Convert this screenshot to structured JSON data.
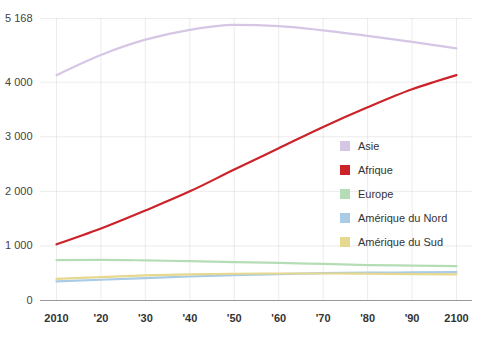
{
  "chart_data": {
    "type": "line",
    "x": [
      2010,
      2020,
      2030,
      2040,
      2050,
      2060,
      2070,
      2080,
      2090,
      2100
    ],
    "xlim": [
      2010,
      2100
    ],
    "xticks": [
      2010,
      {
        "value": 2020,
        "label": "'20"
      },
      {
        "value": 2030,
        "label": "'30"
      },
      {
        "value": 2040,
        "label": "'40"
      },
      {
        "value": 2050,
        "label": "'50"
      },
      {
        "value": 2060,
        "label": "'60"
      },
      {
        "value": 2070,
        "label": "'70"
      },
      {
        "value": 2080,
        "label": "'80"
      },
      {
        "value": 2090,
        "label": "'90"
      },
      2100
    ],
    "ylim": [
      0,
      5168
    ],
    "yticks": [
      0,
      {
        "value": 1000,
        "label": "1 000"
      },
      {
        "value": 2000,
        "label": "2 000"
      },
      {
        "value": 3000,
        "label": "3 000"
      },
      {
        "value": 4000,
        "label": "4 000"
      },
      {
        "value": 5168,
        "label": "5 168"
      }
    ],
    "grid": true,
    "legend": "right",
    "series": [
      {
        "name": "Asie",
        "color": "#d6c6e6",
        "values": [
          4130,
          4500,
          4780,
          4960,
          5050,
          5030,
          4950,
          4850,
          4740,
          4620
        ]
      },
      {
        "name": "Afrique",
        "color": "#cc2229",
        "values": [
          1030,
          1320,
          1650,
          2000,
          2400,
          2790,
          3180,
          3540,
          3870,
          4130
        ]
      },
      {
        "name": "Europe",
        "color": "#b5ddb5",
        "values": [
          740,
          745,
          735,
          720,
          705,
          690,
          670,
          650,
          640,
          630
        ]
      },
      {
        "name": "Amérique du Nord",
        "color": "#a9cbe6",
        "values": [
          350,
          380,
          410,
          440,
          465,
          485,
          500,
          510,
          515,
          520
        ]
      },
      {
        "name": "Amérique du Sud",
        "color": "#e6d88e",
        "values": [
          395,
          430,
          460,
          480,
          490,
          495,
          495,
          490,
          485,
          480
        ]
      }
    ]
  }
}
